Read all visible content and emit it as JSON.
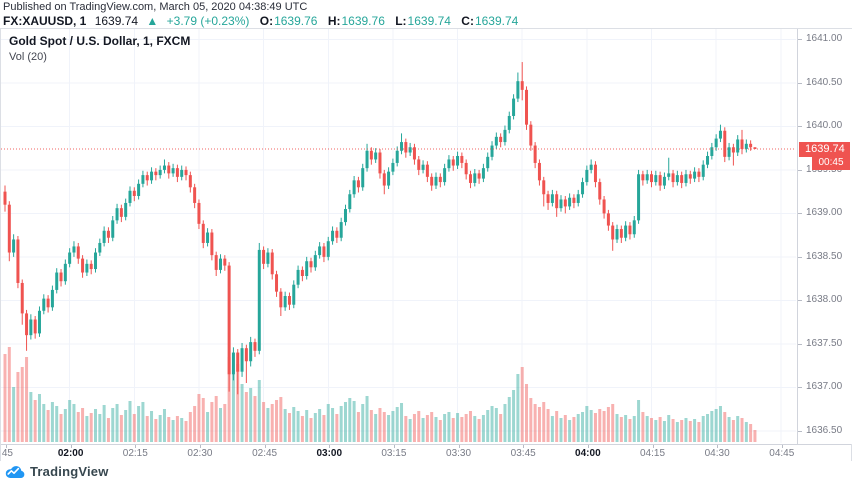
{
  "header": {
    "published": "Published on TradingView.com, March 05, 2020 04:38:49 UTC",
    "symbol": "FX:XAUUSD, 1",
    "last_price": "1639.74",
    "change_arrow": "▲",
    "change": "+3.79 (+0.23%)",
    "ohlc": [
      {
        "label": "O:",
        "value": "1639.76"
      },
      {
        "label": "H:",
        "value": "1639.76"
      },
      {
        "label": "L:",
        "value": "1639.74"
      },
      {
        "label": "C:",
        "value": "1639.74"
      }
    ]
  },
  "legend": {
    "title": "Gold Spot / U.S. Dollar, 1, FXCM",
    "indicator": "Vol (20)"
  },
  "price_axis": {
    "ticks": [
      "1641.00",
      "1640.50",
      "1640.00",
      "1639.50",
      "1639.00",
      "1638.50",
      "1638.00",
      "1637.50",
      "1637.00",
      "1636.50"
    ],
    "label": "1639.74",
    "countdown": "00:45"
  },
  "time_axis": {
    "ticks": [
      {
        "label": ":45",
        "bold": false
      },
      {
        "label": "02:00",
        "bold": true
      },
      {
        "label": "02:15",
        "bold": false
      },
      {
        "label": "02:30",
        "bold": false
      },
      {
        "label": "02:45",
        "bold": false
      },
      {
        "label": "03:00",
        "bold": true
      },
      {
        "label": "03:15",
        "bold": false
      },
      {
        "label": "03:30",
        "bold": false
      },
      {
        "label": "03:45",
        "bold": false
      },
      {
        "label": "04:00",
        "bold": true
      },
      {
        "label": "04:15",
        "bold": false
      },
      {
        "label": "04:30",
        "bold": false
      },
      {
        "label": "04:45",
        "bold": false
      }
    ]
  },
  "footer": {
    "brand": "TradingView"
  },
  "colors": {
    "up": "#26a69a",
    "down": "#ef5350",
    "vol_up": "rgba(38,166,154,0.45)",
    "vol_down": "rgba(239,83,80,0.45)",
    "grid": "#f0f3fa",
    "axis_text": "#787b86",
    "border": "#d1d4dc",
    "price_line": "#ef5350",
    "label_bg": "#ef5350",
    "header_accent": "#26a69a",
    "brand_blue": "#2196f3"
  },
  "chart_data": {
    "type": "candlestick+volume",
    "title": "Gold Spot / U.S. Dollar, 1, FXCM",
    "symbol": "XAUUSD",
    "interval_min": 1,
    "exchange": "FXCM",
    "start_time": "01:45",
    "end_time": "04:39",
    "current_price": 1639.74,
    "ylim": [
      1636.36,
      1641.12
    ],
    "price_ticks": [
      1641.0,
      1640.5,
      1640.0,
      1639.5,
      1639.0,
      1638.5,
      1638.0,
      1637.5,
      1637.0,
      1636.5
    ],
    "volume_label": "Vol (20)",
    "candles": [
      [
        1639.25,
        1639.32,
        1639.02,
        1639.1,
        88
      ],
      [
        1639.1,
        1639.14,
        1638.45,
        1638.55,
        95
      ],
      [
        1638.55,
        1638.76,
        1638.5,
        1638.7,
        55
      ],
      [
        1638.7,
        1638.74,
        1638.14,
        1638.2,
        70
      ],
      [
        1638.2,
        1638.24,
        1637.72,
        1637.85,
        75
      ],
      [
        1637.85,
        1637.89,
        1637.42,
        1637.6,
        85
      ],
      [
        1637.6,
        1637.84,
        1637.55,
        1637.78,
        50
      ],
      [
        1637.78,
        1637.82,
        1637.56,
        1637.62,
        42
      ],
      [
        1637.62,
        1637.93,
        1637.58,
        1637.88,
        48
      ],
      [
        1637.88,
        1638.07,
        1637.84,
        1638.02,
        38
      ],
      [
        1638.02,
        1638.06,
        1637.86,
        1637.92,
        32
      ],
      [
        1637.92,
        1638.17,
        1637.88,
        1638.12,
        40
      ],
      [
        1638.12,
        1638.37,
        1638.08,
        1638.32,
        36
      ],
      [
        1638.32,
        1638.36,
        1638.16,
        1638.22,
        28
      ],
      [
        1638.22,
        1638.47,
        1638.18,
        1638.42,
        33
      ],
      [
        1638.42,
        1638.6,
        1638.38,
        1638.55,
        42
      ],
      [
        1638.55,
        1638.68,
        1638.5,
        1638.62,
        38
      ],
      [
        1638.62,
        1638.66,
        1638.42,
        1638.48,
        30
      ],
      [
        1638.48,
        1638.52,
        1638.26,
        1638.32,
        34
      ],
      [
        1638.32,
        1638.47,
        1638.28,
        1638.42,
        26
      ],
      [
        1638.42,
        1638.46,
        1638.3,
        1638.36,
        29
      ],
      [
        1638.36,
        1638.6,
        1638.32,
        1638.55,
        33
      ],
      [
        1638.55,
        1638.71,
        1638.51,
        1638.66,
        28
      ],
      [
        1638.66,
        1638.85,
        1638.62,
        1638.8,
        37
      ],
      [
        1638.8,
        1638.84,
        1638.66,
        1638.72,
        24
      ],
      [
        1638.72,
        1638.97,
        1638.68,
        1638.92,
        34
      ],
      [
        1638.92,
        1639.11,
        1638.88,
        1639.06,
        38
      ],
      [
        1639.06,
        1639.1,
        1638.9,
        1638.96,
        27
      ],
      [
        1638.96,
        1639.17,
        1638.92,
        1639.12,
        32
      ],
      [
        1639.12,
        1639.31,
        1639.08,
        1639.26,
        41
      ],
      [
        1639.26,
        1639.3,
        1639.14,
        1639.2,
        28
      ],
      [
        1639.2,
        1639.39,
        1639.16,
        1639.34,
        36
      ],
      [
        1639.34,
        1639.49,
        1639.3,
        1639.44,
        40
      ],
      [
        1639.44,
        1639.48,
        1639.32,
        1639.38,
        26
      ],
      [
        1639.38,
        1639.53,
        1639.34,
        1639.48,
        31
      ],
      [
        1639.48,
        1639.52,
        1639.38,
        1639.44,
        23
      ],
      [
        1639.44,
        1639.55,
        1639.4,
        1639.5,
        27
      ],
      [
        1639.5,
        1639.62,
        1639.46,
        1639.55,
        33
      ],
      [
        1639.55,
        1639.59,
        1639.4,
        1639.46,
        25
      ],
      [
        1639.46,
        1639.57,
        1639.42,
        1639.52,
        22
      ],
      [
        1639.52,
        1639.56,
        1639.36,
        1639.42,
        26
      ],
      [
        1639.42,
        1639.55,
        1639.38,
        1639.5,
        24
      ],
      [
        1639.5,
        1639.54,
        1639.38,
        1639.44,
        21
      ],
      [
        1639.44,
        1639.48,
        1639.24,
        1639.3,
        30
      ],
      [
        1639.3,
        1639.34,
        1639.06,
        1639.12,
        36
      ],
      [
        1639.12,
        1639.16,
        1638.82,
        1638.88,
        48
      ],
      [
        1638.88,
        1638.92,
        1638.6,
        1638.66,
        44
      ],
      [
        1638.66,
        1638.83,
        1638.62,
        1638.78,
        30
      ],
      [
        1638.78,
        1638.82,
        1638.46,
        1638.52,
        40
      ],
      [
        1638.52,
        1638.56,
        1638.28,
        1638.35,
        46
      ],
      [
        1638.35,
        1638.53,
        1638.31,
        1638.48,
        34
      ],
      [
        1638.48,
        1638.52,
        1638.34,
        1638.4,
        38
      ],
      [
        1638.4,
        1638.44,
        1636.95,
        1637.15,
        85
      ],
      [
        1637.15,
        1637.46,
        1637.08,
        1637.4,
        72
      ],
      [
        1637.4,
        1637.44,
        1636.92,
        1637.18,
        78
      ],
      [
        1637.18,
        1637.51,
        1637.12,
        1637.45,
        58
      ],
      [
        1637.45,
        1637.49,
        1637.05,
        1637.3,
        50
      ],
      [
        1637.3,
        1637.58,
        1637.24,
        1637.52,
        54
      ],
      [
        1637.52,
        1637.56,
        1637.35,
        1637.42,
        46
      ],
      [
        1637.42,
        1638.66,
        1637.38,
        1638.58,
        62
      ],
      [
        1638.58,
        1638.62,
        1638.36,
        1638.42,
        40
      ],
      [
        1638.42,
        1638.6,
        1638.38,
        1638.55,
        34
      ],
      [
        1638.55,
        1638.59,
        1638.24,
        1638.3,
        38
      ],
      [
        1638.3,
        1638.34,
        1638.04,
        1638.1,
        42
      ],
      [
        1638.1,
        1638.14,
        1637.82,
        1637.92,
        45
      ],
      [
        1637.92,
        1638.1,
        1637.88,
        1638.05,
        33
      ],
      [
        1638.05,
        1638.09,
        1637.89,
        1637.95,
        29
      ],
      [
        1637.95,
        1638.23,
        1637.91,
        1638.18,
        35
      ],
      [
        1638.18,
        1638.4,
        1638.14,
        1638.35,
        31
      ],
      [
        1638.35,
        1638.39,
        1638.22,
        1638.28,
        26
      ],
      [
        1638.28,
        1638.5,
        1638.24,
        1638.45,
        32
      ],
      [
        1638.45,
        1638.49,
        1638.32,
        1638.38,
        24
      ],
      [
        1638.38,
        1638.57,
        1638.34,
        1638.52,
        29
      ],
      [
        1638.52,
        1638.67,
        1638.48,
        1638.62,
        33
      ],
      [
        1638.62,
        1638.66,
        1638.44,
        1638.5,
        27
      ],
      [
        1638.5,
        1638.73,
        1638.46,
        1638.68,
        38
      ],
      [
        1638.68,
        1638.85,
        1638.64,
        1638.8,
        34
      ],
      [
        1638.8,
        1638.84,
        1638.66,
        1638.72,
        28
      ],
      [
        1638.72,
        1638.95,
        1638.68,
        1638.9,
        36
      ],
      [
        1638.9,
        1639.1,
        1638.86,
        1639.05,
        40
      ],
      [
        1639.05,
        1639.27,
        1639.01,
        1639.22,
        44
      ],
      [
        1639.22,
        1639.43,
        1639.18,
        1639.38,
        41
      ],
      [
        1639.38,
        1639.42,
        1639.24,
        1639.3,
        30
      ],
      [
        1639.3,
        1639.57,
        1639.26,
        1639.52,
        38
      ],
      [
        1639.52,
        1639.8,
        1639.48,
        1639.72,
        46
      ],
      [
        1639.72,
        1639.76,
        1639.56,
        1639.62,
        32
      ],
      [
        1639.62,
        1639.75,
        1639.58,
        1639.7,
        28
      ],
      [
        1639.7,
        1639.74,
        1639.4,
        1639.46,
        34
      ],
      [
        1639.46,
        1639.5,
        1639.22,
        1639.32,
        30
      ],
      [
        1639.32,
        1639.53,
        1639.28,
        1639.48,
        27
      ],
      [
        1639.48,
        1639.63,
        1639.44,
        1639.58,
        31
      ],
      [
        1639.58,
        1639.77,
        1639.54,
        1639.72,
        35
      ],
      [
        1639.72,
        1639.92,
        1639.68,
        1639.82,
        39
      ],
      [
        1639.82,
        1639.86,
        1639.64,
        1639.7,
        26
      ],
      [
        1639.7,
        1639.81,
        1639.66,
        1639.76,
        23
      ],
      [
        1639.76,
        1639.8,
        1639.56,
        1639.62,
        28
      ],
      [
        1639.62,
        1639.66,
        1639.44,
        1639.5,
        31
      ],
      [
        1639.5,
        1639.61,
        1639.46,
        1639.56,
        24
      ],
      [
        1639.56,
        1639.6,
        1639.36,
        1639.42,
        27
      ],
      [
        1639.42,
        1639.46,
        1639.26,
        1639.32,
        30
      ],
      [
        1639.32,
        1639.47,
        1639.28,
        1639.42,
        25
      ],
      [
        1639.42,
        1639.46,
        1639.3,
        1639.36,
        22
      ],
      [
        1639.36,
        1639.57,
        1639.32,
        1639.52,
        28
      ],
      [
        1639.52,
        1639.67,
        1639.48,
        1639.62,
        30
      ],
      [
        1639.62,
        1639.66,
        1639.49,
        1639.55,
        24
      ],
      [
        1639.55,
        1639.71,
        1639.51,
        1639.66,
        29
      ],
      [
        1639.66,
        1639.7,
        1639.52,
        1639.58,
        25
      ],
      [
        1639.58,
        1639.62,
        1639.39,
        1639.45,
        28
      ],
      [
        1639.45,
        1639.49,
        1639.29,
        1639.35,
        31
      ],
      [
        1639.35,
        1639.51,
        1639.31,
        1639.46,
        26
      ],
      [
        1639.46,
        1639.5,
        1639.34,
        1639.4,
        23
      ],
      [
        1639.4,
        1639.57,
        1639.36,
        1639.52,
        27
      ],
      [
        1639.52,
        1639.7,
        1639.48,
        1639.65,
        32
      ],
      [
        1639.65,
        1639.83,
        1639.61,
        1639.78,
        36
      ],
      [
        1639.78,
        1639.93,
        1639.74,
        1639.88,
        34
      ],
      [
        1639.88,
        1639.92,
        1639.76,
        1639.82,
        28
      ],
      [
        1639.82,
        1640.01,
        1639.78,
        1639.96,
        38
      ],
      [
        1639.96,
        1640.17,
        1639.92,
        1640.12,
        45
      ],
      [
        1640.12,
        1640.37,
        1640.08,
        1640.32,
        52
      ],
      [
        1640.32,
        1640.62,
        1640.28,
        1640.52,
        68
      ],
      [
        1640.52,
        1640.74,
        1640.3,
        1640.42,
        75
      ],
      [
        1640.42,
        1640.46,
        1639.96,
        1640.02,
        58
      ],
      [
        1640.02,
        1640.06,
        1639.72,
        1639.78,
        44
      ],
      [
        1639.78,
        1639.82,
        1639.52,
        1639.58,
        38
      ],
      [
        1639.58,
        1639.62,
        1639.32,
        1639.38,
        35
      ],
      [
        1639.38,
        1639.42,
        1639.08,
        1639.22,
        40
      ],
      [
        1639.22,
        1639.26,
        1639.04,
        1639.12,
        33
      ],
      [
        1639.12,
        1639.27,
        1639.08,
        1639.22,
        26
      ],
      [
        1639.22,
        1639.26,
        1638.96,
        1639.06,
        31
      ],
      [
        1639.06,
        1639.21,
        1639.02,
        1639.16,
        24
      ],
      [
        1639.16,
        1639.2,
        1639.0,
        1639.08,
        27
      ],
      [
        1639.08,
        1639.23,
        1639.04,
        1639.18,
        22
      ],
      [
        1639.18,
        1639.22,
        1639.06,
        1639.12,
        25
      ],
      [
        1639.12,
        1639.27,
        1639.08,
        1639.22,
        28
      ],
      [
        1639.22,
        1639.41,
        1639.18,
        1639.36,
        30
      ],
      [
        1639.36,
        1639.55,
        1639.32,
        1639.5,
        36
      ],
      [
        1639.5,
        1639.62,
        1639.46,
        1639.56,
        32
      ],
      [
        1639.56,
        1639.6,
        1639.3,
        1639.36,
        29
      ],
      [
        1639.36,
        1639.4,
        1639.1,
        1639.16,
        33
      ],
      [
        1639.16,
        1639.2,
        1638.94,
        1639.0,
        31
      ],
      [
        1639.0,
        1639.04,
        1638.8,
        1638.86,
        35
      ],
      [
        1638.86,
        1638.9,
        1638.57,
        1638.7,
        38
      ],
      [
        1638.7,
        1638.87,
        1638.66,
        1638.82,
        28
      ],
      [
        1638.82,
        1638.86,
        1638.66,
        1638.72,
        25
      ],
      [
        1638.72,
        1638.91,
        1638.68,
        1638.86,
        27
      ],
      [
        1638.86,
        1638.9,
        1638.7,
        1638.76,
        23
      ],
      [
        1638.76,
        1638.97,
        1638.72,
        1638.92,
        26
      ],
      [
        1638.92,
        1639.5,
        1638.88,
        1639.45,
        42
      ],
      [
        1639.45,
        1639.49,
        1639.32,
        1639.38,
        30
      ],
      [
        1639.38,
        1639.5,
        1639.34,
        1639.45,
        26
      ],
      [
        1639.45,
        1639.49,
        1639.3,
        1639.36,
        24
      ],
      [
        1639.36,
        1639.49,
        1639.32,
        1639.44,
        22
      ],
      [
        1639.44,
        1639.48,
        1639.26,
        1639.32,
        25
      ],
      [
        1639.32,
        1639.47,
        1639.28,
        1639.42,
        21
      ],
      [
        1639.42,
        1639.64,
        1639.38,
        1639.46,
        27
      ],
      [
        1639.46,
        1639.5,
        1639.3,
        1639.36,
        23
      ],
      [
        1639.36,
        1639.49,
        1639.32,
        1639.44,
        20
      ],
      [
        1639.44,
        1639.48,
        1639.29,
        1639.35,
        22
      ],
      [
        1639.35,
        1639.5,
        1639.31,
        1639.45,
        24
      ],
      [
        1639.45,
        1639.49,
        1639.34,
        1639.4,
        21
      ],
      [
        1639.4,
        1639.53,
        1639.36,
        1639.48,
        23
      ],
      [
        1639.48,
        1639.52,
        1639.36,
        1639.42,
        20
      ],
      [
        1639.42,
        1639.61,
        1639.38,
        1639.56,
        26
      ],
      [
        1639.56,
        1639.71,
        1639.52,
        1639.66,
        28
      ],
      [
        1639.66,
        1639.81,
        1639.62,
        1639.76,
        31
      ],
      [
        1639.76,
        1639.91,
        1639.72,
        1639.86,
        33
      ],
      [
        1639.86,
        1640.02,
        1639.82,
        1639.95,
        36
      ],
      [
        1639.95,
        1639.99,
        1639.59,
        1639.65,
        30
      ],
      [
        1639.65,
        1639.81,
        1639.61,
        1639.76,
        25
      ],
      [
        1639.76,
        1639.8,
        1639.55,
        1639.7,
        22
      ],
      [
        1639.7,
        1639.9,
        1639.66,
        1639.85,
        26
      ],
      [
        1639.85,
        1639.96,
        1639.68,
        1639.74,
        24
      ],
      [
        1639.74,
        1639.85,
        1639.7,
        1639.8,
        20
      ],
      [
        1639.8,
        1639.84,
        1639.72,
        1639.76,
        18
      ],
      [
        1639.76,
        1639.76,
        1639.74,
        1639.74,
        12
      ]
    ]
  }
}
